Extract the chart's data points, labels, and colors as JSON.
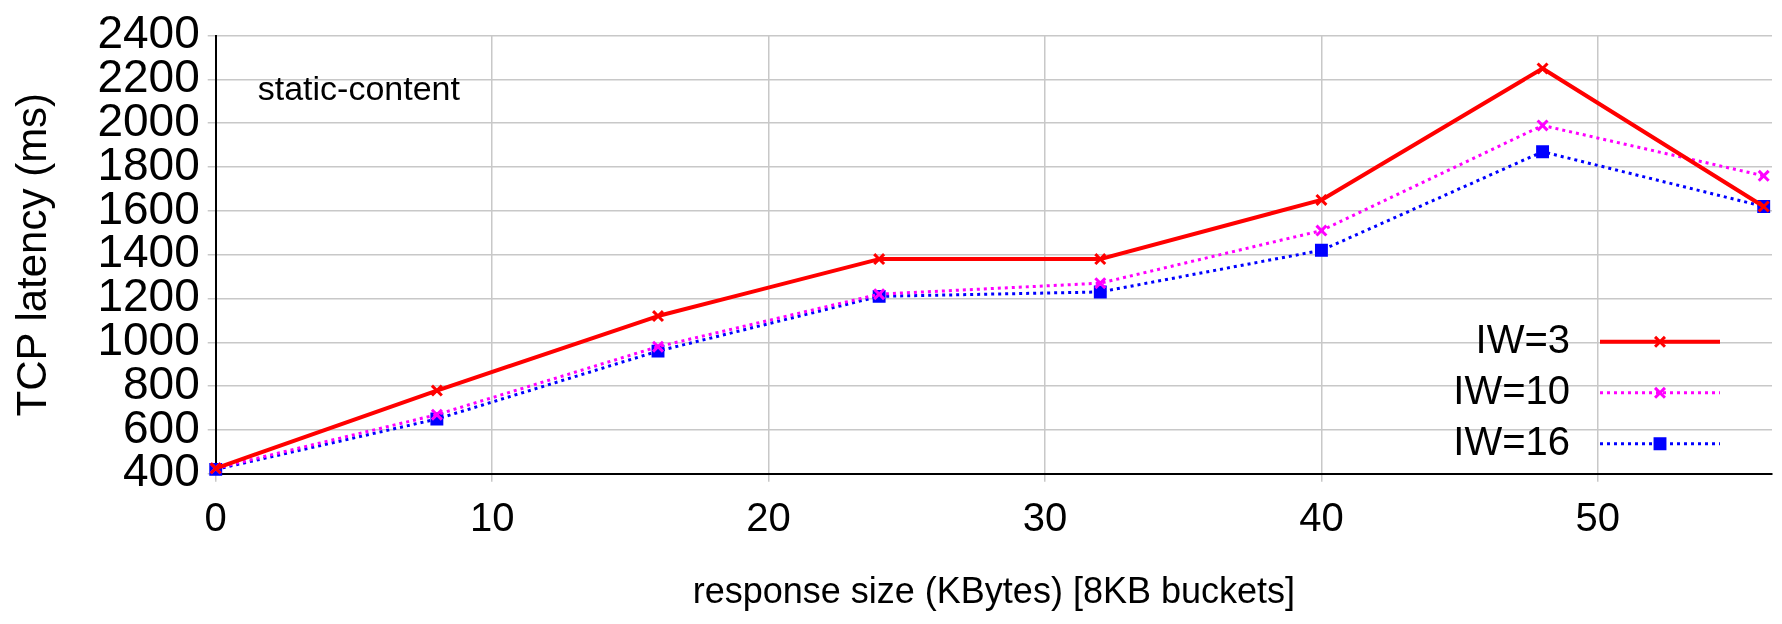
{
  "chart_data": {
    "type": "line",
    "x": [
      0,
      8,
      16,
      24,
      32,
      40,
      48,
      56
    ],
    "xlabel": "response size (KBytes) [8KB buckets]",
    "ylabel": "TCP latency (ms)",
    "annotations": [
      "static-content"
    ],
    "xlim": [
      0,
      56.3
    ],
    "xticks": [
      0,
      10,
      20,
      30,
      40,
      50
    ],
    "ylim": [
      400,
      2400
    ],
    "yticks": [
      400,
      600,
      800,
      1000,
      1200,
      1400,
      1600,
      1800,
      2000,
      2200,
      2400
    ],
    "grid": true,
    "legend": "bottom right",
    "series": [
      {
        "name": "IW=3",
        "color": "#ff0000",
        "marker": "cross",
        "line_style": "solid",
        "values": [
          425,
          780,
          1120,
          1380,
          1380,
          1650,
          2250,
          1620
        ]
      },
      {
        "name": "IW=10",
        "color": "#ff00ff",
        "marker": "cross",
        "line_style": "dotted",
        "values": [
          425,
          670,
          980,
          1220,
          1270,
          1510,
          1990,
          1760
        ]
      },
      {
        "name": "IW=16",
        "color": "#0000ff",
        "marker": "square",
        "line_style": "dotted",
        "values": [
          420,
          650,
          960,
          1210,
          1230,
          1420,
          1870,
          1620
        ]
      }
    ]
  }
}
